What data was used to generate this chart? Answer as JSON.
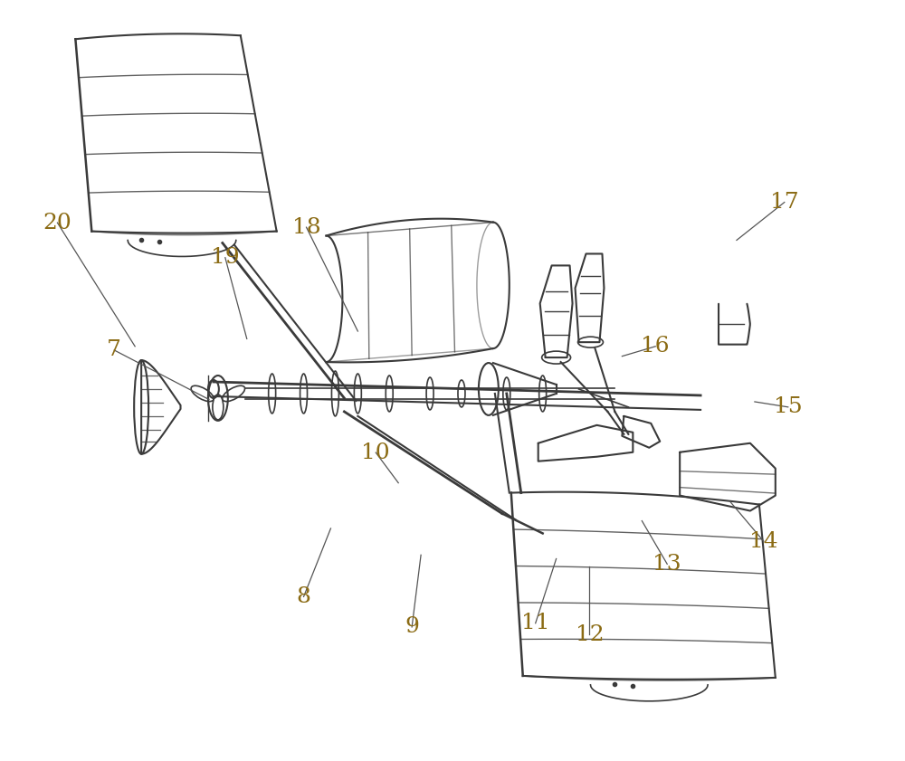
{
  "background_color": "#ffffff",
  "line_color": "#3a3a3a",
  "label_color": "#8B6B14",
  "fig_width": 10.0,
  "fig_height": 8.41,
  "dpi": 100,
  "annotation_data": {
    "7": {
      "lp": [
        0.125,
        0.46
      ],
      "tp": [
        0.23,
        0.525
      ]
    },
    "8": {
      "lp": [
        0.335,
        0.785
      ],
      "tp": [
        0.365,
        0.695
      ]
    },
    "9": {
      "lp": [
        0.455,
        0.825
      ],
      "tp": [
        0.465,
        0.73
      ]
    },
    "10": {
      "lp": [
        0.415,
        0.595
      ],
      "tp": [
        0.44,
        0.635
      ]
    },
    "11": {
      "lp": [
        0.592,
        0.82
      ],
      "tp": [
        0.615,
        0.735
      ]
    },
    "12": {
      "lp": [
        0.652,
        0.835
      ],
      "tp": [
        0.652,
        0.745
      ]
    },
    "13": {
      "lp": [
        0.738,
        0.742
      ],
      "tp": [
        0.71,
        0.685
      ]
    },
    "14": {
      "lp": [
        0.845,
        0.712
      ],
      "tp": [
        0.808,
        0.66
      ]
    },
    "15": {
      "lp": [
        0.872,
        0.535
      ],
      "tp": [
        0.835,
        0.528
      ]
    },
    "16": {
      "lp": [
        0.725,
        0.455
      ],
      "tp": [
        0.688,
        0.468
      ]
    },
    "17": {
      "lp": [
        0.868,
        0.265
      ],
      "tp": [
        0.815,
        0.315
      ]
    },
    "18": {
      "lp": [
        0.338,
        0.298
      ],
      "tp": [
        0.395,
        0.435
      ]
    },
    "19": {
      "lp": [
        0.248,
        0.338
      ],
      "tp": [
        0.272,
        0.445
      ]
    },
    "20": {
      "lp": [
        0.062,
        0.292
      ],
      "tp": [
        0.148,
        0.455
      ]
    }
  }
}
